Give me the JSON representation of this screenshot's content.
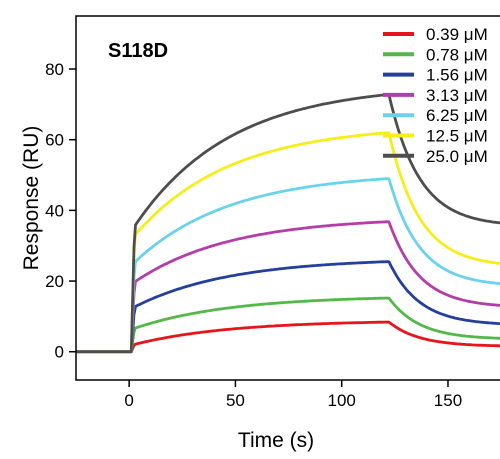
{
  "chart_data": {
    "type": "line",
    "title": "S118D",
    "xlabel": "Time (s)",
    "ylabel": "Response (RU)",
    "xlim": [
      -25,
      182
    ],
    "ylim": [
      -8,
      95
    ],
    "xticks": [
      0,
      50,
      100,
      150
    ],
    "yticks": [
      0,
      20,
      40,
      60,
      80
    ],
    "grid": false,
    "legend_position": "top-right",
    "injection_start": 2,
    "injection_end": 122,
    "series": [
      {
        "name": "0.39 μM",
        "color": "#e8141b",
        "plateau": 8.4,
        "jump": 2.0,
        "dissociation_end": 1.5
      },
      {
        "name": "0.78 μM",
        "color": "#52b848",
        "plateau": 15.2,
        "jump": 6.5,
        "dissociation_end": 3.5
      },
      {
        "name": "1.56 μM",
        "color": "#243f9e",
        "plateau": 25.5,
        "jump": 12.5,
        "dissociation_end": 7.5
      },
      {
        "name": "3.13 μM",
        "color": "#b43da8",
        "plateau": 36.8,
        "jump": 19.5,
        "dissociation_end": 12.5
      },
      {
        "name": "6.25 μM",
        "color": "#6ad3ec",
        "plateau": 49.0,
        "jump": 25.0,
        "dissociation_end": 18.5
      },
      {
        "name": "12.5 μM",
        "color": "#f6ed1a",
        "plateau": 62.0,
        "jump": 32.5,
        "dissociation_end": 24.0
      },
      {
        "name": "25.0 μM",
        "color": "#4d4d4d",
        "plateau": 72.8,
        "jump": 35.0,
        "dissociation_end": 35.5
      }
    ]
  }
}
